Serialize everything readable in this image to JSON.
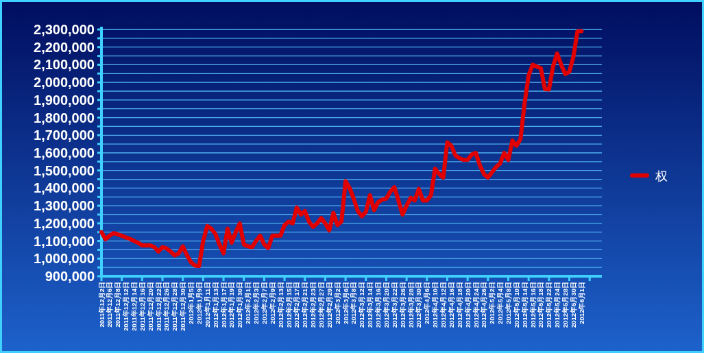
{
  "chart_data": {
    "type": "line",
    "legend": "right",
    "grid": "y",
    "line_style": "solid",
    "marker": "none",
    "categories": [
      "2011年12月2日",
      null,
      "2011年12月6日",
      null,
      "2011年12月8日",
      null,
      "2011年12月12日",
      null,
      "2011年12月14日",
      null,
      "2011年12月16日",
      null,
      "2011年12月20日",
      null,
      "2011年12月22日",
      null,
      "2011年12月26日",
      null,
      "2011年12月28日",
      null,
      "2011年12月30日",
      null,
      "2012年1月5日",
      null,
      "2012年1月9日",
      null,
      "2012年1月11日",
      null,
      "2012年1月13日",
      null,
      "2012年1月17日",
      null,
      "2012年1月19日",
      null,
      "2012年1月30日",
      null,
      "2012年2月1日",
      null,
      "2012年2月3日",
      null,
      "2012年2月7日",
      null,
      "2012年2月9日",
      null,
      "2012年2月13日",
      null,
      "2012年2月15日",
      null,
      "2012年2月17日",
      null,
      "2012年2月21日",
      null,
      "2012年2月23日",
      null,
      "2012年2月27日",
      null,
      "2012年2月29日",
      null,
      "2012年3月2日",
      null,
      "2012年3月6日",
      null,
      "2012年3月8日",
      null,
      "2012年3月12日",
      null,
      "2012年3月14日",
      null,
      "2012年3月16日",
      null,
      "2012年3月20日",
      null,
      "2012年3月22日",
      null,
      "2012年3月26日",
      null,
      "2012年3月28日",
      null,
      "2012年3月30日",
      null,
      "2012年4月6日",
      null,
      "2012年4月10日",
      null,
      "2012年4月12日",
      null,
      "2012年4月16日",
      null,
      "2012年4月18日",
      null,
      "2012年4月20日",
      null,
      "2012年4月24日",
      null,
      "2012年4月26日",
      null,
      "2012年5月2日",
      null,
      "2012年5月4日",
      null,
      "2012年5月8日",
      null,
      "2012年5月10日",
      null,
      "2012年5月14日",
      null,
      "2012年5月16日",
      null,
      "2012年5月18日",
      null,
      "2012年5月22日",
      null,
      "2012年5月24日",
      null,
      "2012年5月28日",
      null,
      "2012年5月30日",
      null,
      "2012年6月1日",
      null,
      null,
      null,
      null,
      null
    ],
    "series": [
      {
        "name": "权",
        "color": "#e00000",
        "values": [
          1150000,
          1110000,
          1130000,
          1145000,
          1138000,
          1130000,
          1120000,
          1112000,
          1100000,
          1090000,
          1075000,
          1075000,
          1075000,
          1065000,
          1040000,
          1065000,
          1058000,
          1040000,
          1018000,
          1030000,
          1070000,
          1020000,
          980000,
          960000,
          958000,
          1100000,
          1185000,
          1170000,
          1140000,
          1080000,
          1030000,
          1170000,
          1090000,
          1150000,
          1200000,
          1080000,
          1070000,
          1065000,
          1100000,
          1130000,
          1080000,
          1060000,
          1130000,
          1130000,
          1130000,
          1190000,
          1210000,
          1200000,
          1290000,
          1250000,
          1270000,
          1210000,
          1180000,
          1200000,
          1230000,
          1200000,
          1160000,
          1260000,
          1190000,
          1210000,
          1440000,
          1400000,
          1340000,
          1270000,
          1240000,
          1265000,
          1360000,
          1275000,
          1320000,
          1335000,
          1340000,
          1380000,
          1405000,
          1330000,
          1250000,
          1300000,
          1345000,
          1330000,
          1395000,
          1330000,
          1330000,
          1360000,
          1510000,
          1480000,
          1460000,
          1660000,
          1640000,
          1585000,
          1570000,
          1560000,
          1560000,
          1590000,
          1600000,
          1530000,
          1480000,
          1460000,
          1490000,
          1520000,
          1540000,
          1600000,
          1560000,
          1670000,
          1640000,
          1678000,
          1880000,
          2040000,
          2100000,
          2090000,
          2080000,
          1962000,
          1960000,
          2090000,
          2164000,
          2100000,
          2047000,
          2060000,
          2145000,
          2290000,
          2290000,
          null,
          null,
          null,
          null,
          null
        ]
      }
    ],
    "ylim": [
      900000,
      2300000
    ],
    "yticks": [
      {
        "value": 900000,
        "label": "900,000"
      },
      {
        "value": 950000,
        "label": null
      },
      {
        "value": 1000000,
        "label": "1,000,000"
      },
      {
        "value": 1050000,
        "label": null
      },
      {
        "value": 1100000,
        "label": "1,100,000"
      },
      {
        "value": 1150000,
        "label": null
      },
      {
        "value": 1200000,
        "label": "1,200,000"
      },
      {
        "value": 1250000,
        "label": null
      },
      {
        "value": 1300000,
        "label": "1,300,000"
      },
      {
        "value": 1350000,
        "label": null
      },
      {
        "value": 1400000,
        "label": "1,400,000"
      },
      {
        "value": 1450000,
        "label": null
      },
      {
        "value": 1500000,
        "label": "1,500,000"
      },
      {
        "value": 1550000,
        "label": null
      },
      {
        "value": 1600000,
        "label": "1,600,000"
      },
      {
        "value": 1650000,
        "label": null
      },
      {
        "value": 1700000,
        "label": "1,700,000"
      },
      {
        "value": 1750000,
        "label": null
      },
      {
        "value": 1800000,
        "label": "1,800,000"
      },
      {
        "value": 1850000,
        "label": null
      },
      {
        "value": 1900000,
        "label": "1,900,000"
      },
      {
        "value": 1950000,
        "label": null
      },
      {
        "value": 2000000,
        "label": "2,000,000"
      },
      {
        "value": 2050000,
        "label": null
      },
      {
        "value": 2100000,
        "label": "2,100,000"
      },
      {
        "value": 2150000,
        "label": null
      },
      {
        "value": 2200000,
        "label": "2,200,000"
      },
      {
        "value": 2250000,
        "label": null
      },
      {
        "value": 2300000,
        "label": "2,300,000"
      }
    ]
  }
}
